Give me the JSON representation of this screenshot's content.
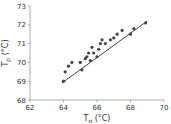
{
  "chart_data": {
    "type": "scatter",
    "xlabel": "To (°C)",
    "ylabel": "Tp (°C)",
    "xlim": [
      62,
      70
    ],
    "ylim": [
      68,
      73
    ],
    "xticks": [
      62,
      64,
      66,
      68,
      70
    ],
    "yticks": [
      68,
      69,
      70,
      71,
      72,
      73
    ],
    "series": [
      {
        "type": "scatter",
        "marker": "circle",
        "color": "#444444",
        "x": [
          64.0,
          64.1,
          64.3,
          64.5,
          65.0,
          65.1,
          65.3,
          65.4,
          65.5,
          65.6,
          65.7,
          65.8,
          66.0,
          66.1,
          66.2,
          66.3,
          66.5,
          66.8,
          67.0,
          67.2,
          67.5,
          68.0,
          68.2,
          68.9
        ],
        "values": [
          69.0,
          69.5,
          69.8,
          70.0,
          70.0,
          69.6,
          70.2,
          70.3,
          70.5,
          70.1,
          70.8,
          70.5,
          70.3,
          70.7,
          71.0,
          71.2,
          71.0,
          71.2,
          71.3,
          71.5,
          71.7,
          71.5,
          71.8,
          72.1
        ]
      },
      {
        "type": "line",
        "line_style": "solid",
        "color": "#444444",
        "x": [
          63.9,
          69.0
        ],
        "values": [
          68.9,
          72.2
        ]
      }
    ]
  }
}
